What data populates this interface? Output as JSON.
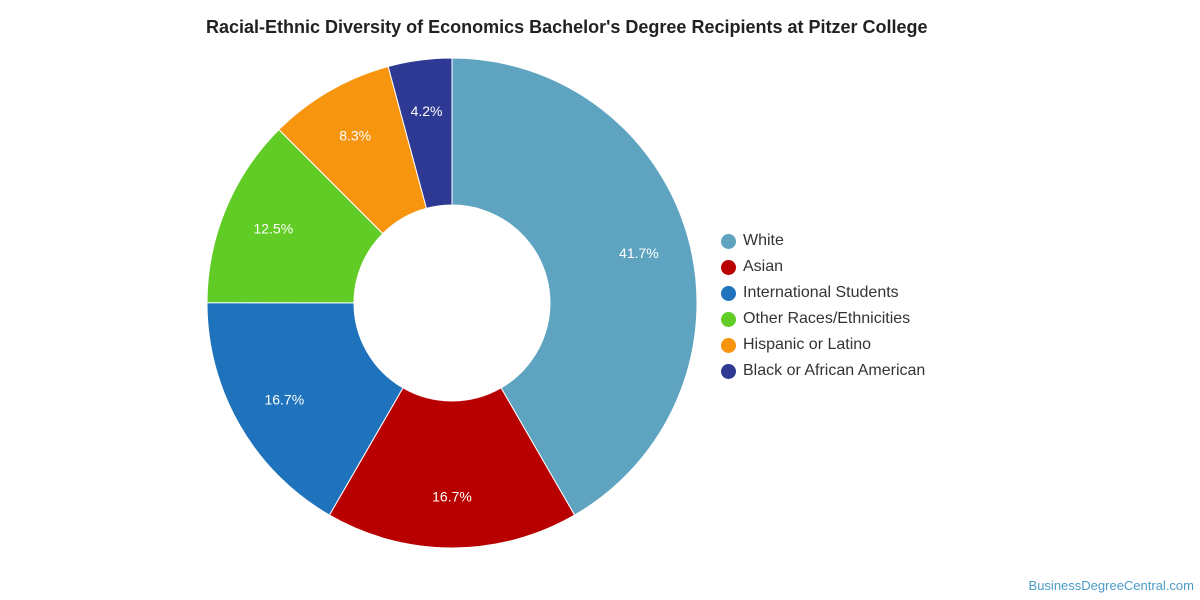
{
  "title": "Racial-Ethnic Diversity of Economics Bachelor's Degree Recipients at Pitzer College",
  "credit": "BusinessDegreeCentral.com",
  "chart_data": {
    "type": "pie",
    "donut": true,
    "title": "Racial-Ethnic Diversity of Economics Bachelor's Degree Recipients at Pitzer College",
    "legend_position": "right",
    "slices": [
      {
        "name": "White",
        "value": 41.7,
        "label": "41.7%",
        "color": "#5ea3c0"
      },
      {
        "name": "Asian",
        "value": 16.7,
        "label": "16.7%",
        "color": "#b90000"
      },
      {
        "name": "International Students",
        "value": 16.7,
        "label": "16.7%",
        "color": "#1f72bc"
      },
      {
        "name": "Other Races/Ethnicities",
        "value": 12.5,
        "label": "12.5%",
        "color": "#61cc25"
      },
      {
        "name": "Hispanic or Latino",
        "value": 8.3,
        "label": "8.3%",
        "color": "#f7950f"
      },
      {
        "name": "Black or African American",
        "value": 4.2,
        "label": "4.2%",
        "color": "#2e3993"
      }
    ]
  }
}
